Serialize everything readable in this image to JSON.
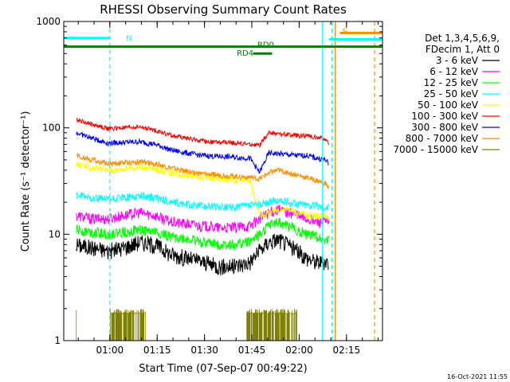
{
  "chart_data": {
    "type": "line",
    "title": "RHESSI Observing Summary Count Rates",
    "xlabel": "Start Time (07-Sep-07 00:49:22)",
    "ylabel": "Count Rate (s⁻¹ detector⁻¹)",
    "yscale": "log",
    "ylim": [
      1,
      1000
    ],
    "xlim_minutes": [
      -4,
      97
    ],
    "x_ticks": [
      {
        "m": 10.6,
        "label": "01:00"
      },
      {
        "m": 25.6,
        "label": "01:15"
      },
      {
        "m": 40.6,
        "label": "01:30"
      },
      {
        "m": 55.6,
        "label": "01:45"
      },
      {
        "m": 70.6,
        "label": "02:00"
      },
      {
        "m": 85.6,
        "label": "02:15"
      }
    ],
    "y_ticks": [
      {
        "v": 1,
        "label": "1"
      },
      {
        "v": 10,
        "label": "10"
      },
      {
        "v": 100,
        "label": "100"
      },
      {
        "v": 1000,
        "label": "1000"
      }
    ],
    "legend_title_lines": [
      "Det 1,3,4,5,6,9,",
      "FDecim 1, Att 0"
    ],
    "series": [
      {
        "name": "3 - 6 keV",
        "color": "#000000",
        "x": [
          0,
          5,
          10,
          15,
          20,
          25,
          30,
          35,
          40,
          45,
          50,
          55,
          58,
          61,
          64,
          67,
          70,
          73,
          76,
          79,
          80
        ],
        "values": [
          8,
          7.5,
          7,
          7.5,
          8.5,
          8,
          6.5,
          6,
          5.5,
          5,
          5,
          5.5,
          7,
          8.5,
          9,
          8,
          7,
          6,
          5.5,
          5.5,
          5.5
        ]
      },
      {
        "name": "6 - 12 keV",
        "color": "#ff00ff",
        "x": [
          0,
          5,
          10,
          15,
          20,
          25,
          30,
          35,
          40,
          45,
          50,
          55,
          58,
          61,
          64,
          67,
          70,
          73,
          76,
          79,
          80
        ],
        "values": [
          15,
          14,
          14,
          15,
          16,
          15,
          13,
          12.5,
          12,
          11.5,
          11.5,
          12,
          14,
          16,
          17,
          16,
          15,
          14,
          13,
          13,
          13
        ]
      },
      {
        "name": "12 - 25 keV",
        "color": "#00ff00",
        "x": [
          0,
          5,
          10,
          15,
          20,
          25,
          30,
          35,
          40,
          45,
          50,
          55,
          58,
          61,
          64,
          67,
          70,
          73,
          76,
          79,
          80
        ],
        "values": [
          11,
          10.5,
          10,
          10.5,
          11,
          10.5,
          9.5,
          9,
          8.5,
          8,
          8,
          8.5,
          10,
          12,
          13,
          12,
          11,
          10,
          9.5,
          9,
          9
        ]
      },
      {
        "name": "25 - 50 keV",
        "color": "#00ffff",
        "x": [
          0,
          5,
          10,
          15,
          20,
          25,
          30,
          35,
          40,
          45,
          50,
          55,
          58,
          61,
          64,
          67,
          70,
          73,
          76,
          79,
          80
        ],
        "values": [
          23,
          22,
          21,
          22,
          23,
          22,
          20,
          19,
          18.5,
          18,
          18,
          18.5,
          19,
          20,
          20.5,
          20,
          19.5,
          19,
          18.5,
          18,
          18
        ]
      },
      {
        "name": "50 - 100 keV",
        "color": "#ffff00",
        "x": [
          0,
          5,
          10,
          15,
          20,
          25,
          30,
          35,
          40,
          45,
          50,
          55,
          58,
          61,
          64,
          67,
          70,
          73,
          76,
          79,
          80
        ],
        "values": [
          45,
          42,
          40,
          41,
          43,
          41,
          38,
          36,
          34,
          33,
          32.5,
          32,
          15,
          16,
          17,
          17,
          16,
          15,
          15,
          14.5,
          14.5
        ]
      },
      {
        "name": "100 - 300 keV",
        "color": "#ff0000",
        "x": [
          0,
          5,
          10,
          15,
          20,
          25,
          30,
          35,
          40,
          45,
          50,
          55,
          58,
          61,
          64,
          67,
          70,
          73,
          76,
          79,
          80
        ],
        "values": [
          120,
          108,
          98,
          100,
          102,
          95,
          85,
          80,
          75,
          73,
          72,
          70,
          68,
          90,
          88,
          86,
          85,
          84,
          82,
          78,
          70
        ]
      },
      {
        "name": "300 - 800 keV",
        "color": "#0000ff",
        "x": [
          0,
          5,
          10,
          15,
          20,
          25,
          30,
          35,
          40,
          45,
          50,
          55,
          58,
          61,
          64,
          67,
          70,
          73,
          76,
          79,
          80
        ],
        "values": [
          90,
          80,
          72,
          73,
          74,
          70,
          62,
          58,
          55,
          54,
          53,
          52,
          38,
          58,
          57,
          56,
          55,
          55,
          52,
          50,
          45
        ]
      },
      {
        "name": "800 - 7000 keV",
        "color": "#ff8c00",
        "x": [
          0,
          5,
          10,
          15,
          20,
          25,
          30,
          35,
          40,
          45,
          50,
          55,
          58,
          61,
          64,
          67,
          70,
          73,
          76,
          79,
          80
        ],
        "values": [
          55,
          50,
          46,
          47,
          48,
          46,
          42,
          39,
          37,
          36,
          35,
          34.5,
          33,
          38,
          40,
          38,
          36,
          34,
          32,
          30,
          27
        ]
      },
      {
        "name": "7000 - 15000 keV",
        "color": "#808000",
        "x": [
          0,
          5,
          10,
          15,
          20,
          25,
          30,
          35,
          40,
          45,
          50,
          55,
          58,
          61,
          64,
          67,
          70,
          73,
          76,
          79,
          80
        ],
        "values": [
          1,
          1,
          1,
          1,
          1,
          1,
          1,
          1,
          1,
          1,
          1,
          1,
          1,
          1,
          1,
          1,
          1,
          1,
          1,
          1,
          1
        ]
      }
    ],
    "annotations": [
      {
        "label": "N",
        "kind": "night",
        "color": "#00ffff",
        "start_m": -4,
        "end_m": 10.6,
        "level": 700
      },
      {
        "label": "S",
        "kind": "saa",
        "color": "#ff8c00",
        "start_m": 83.5,
        "end_m": 97,
        "level": 780
      },
      {
        "label": "",
        "kind": "night",
        "color": "#00ffff",
        "start_m": 80,
        "end_m": 97,
        "level": 680
      },
      {
        "label": "RD0",
        "kind": "decimation",
        "color": "#008000",
        "start_m": -4,
        "end_m": 97,
        "level": 580
      },
      {
        "label": "RD4",
        "kind": "decimation",
        "color": "#008000",
        "start_m": 56,
        "end_m": 62,
        "level": 500
      }
    ],
    "vertical_markers": [
      {
        "m": 10.6,
        "color": "#00ffff",
        "dashed": true
      },
      {
        "m": 78,
        "color": "#00ffff",
        "dashed": false
      },
      {
        "m": 81,
        "color": "#00ffff",
        "dashed": true
      },
      {
        "m": 82,
        "color": "#ff8c00",
        "dashed": false
      },
      {
        "m": 94.5,
        "color": "#ff8c00",
        "dashed": true
      }
    ]
  },
  "footer": {
    "timestamp": "16-Oct-2021 11:55"
  }
}
